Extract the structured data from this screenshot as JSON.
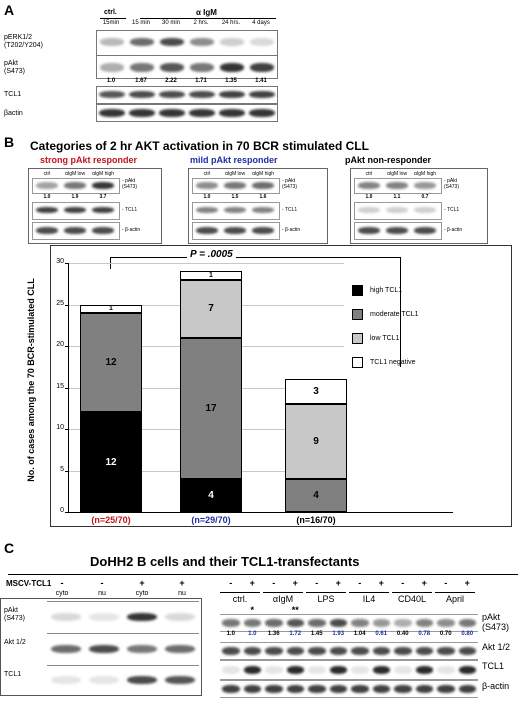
{
  "panelA": {
    "letter": "A",
    "header_ctrl": "ctrl.",
    "header_treat": "α IgM",
    "times": [
      "15min",
      "15 min",
      "30 min",
      "2 hrs.",
      "24 hrs.",
      "4 days"
    ],
    "rows": {
      "perk": "pERK1/2\n(T202/Y204)",
      "pakt": "pAkt\n(S473)",
      "tcl1": "TCL1",
      "bactin": "βactin"
    },
    "pakt_values": [
      "1.0",
      "1.67",
      "2.22",
      "1.71",
      "1.35",
      "1.41"
    ],
    "pakt_levels": [
      0.3,
      0.55,
      0.7,
      0.55,
      0.85,
      0.8
    ],
    "perk_levels": [
      0.25,
      0.6,
      0.75,
      0.45,
      0.15,
      0.1
    ]
  },
  "panelB": {
    "letter": "B",
    "title": "Categories of 2 hr AKT activation in 70 BCR stimulated CLL",
    "groups": [
      {
        "name": "strong pAkt responder",
        "color": "#c0141c",
        "lanes": [
          "ctrl",
          "αIgM low",
          "αIgM high"
        ],
        "values": [
          "1.0",
          "1.9",
          "3.7"
        ]
      },
      {
        "name": "mild pAkt responder",
        "color": "#1d2ea3",
        "lanes": [
          "ctrl",
          "αIgM low",
          "αIgM high"
        ],
        "values": [
          "1.0",
          "1.5",
          "1.6"
        ]
      },
      {
        "name": "pAkt non-responder",
        "color": "#000000",
        "lanes": [
          "ctrl",
          "αIgM low",
          "αIgM high"
        ],
        "values": [
          "1.0",
          "1.1",
          "0.7"
        ]
      }
    ],
    "blot_labels": {
      "pakt": "- pAkt\n(S473)",
      "tcl1": "- TCL1",
      "bactin": "- β-actin"
    },
    "pvalue": "P = .0005",
    "colors": {
      "high": "#000000",
      "moderate": "#808080",
      "low": "#c8c8c8",
      "negative": "#ffffff"
    }
  },
  "chart_data": {
    "type": "bar",
    "stacked": true,
    "categories": [
      "(n=25/70)",
      "(n=29/70)",
      "(n=16/70)"
    ],
    "category_colors": [
      "#c0141c",
      "#1d2ea3",
      "#000000"
    ],
    "series": [
      {
        "name": "high TCL1",
        "color": "#000000",
        "values": [
          12,
          4,
          0
        ]
      },
      {
        "name": "moderate TCL1",
        "color": "#808080",
        "values": [
          12,
          17,
          4
        ]
      },
      {
        "name": "low TCL1",
        "color": "#c8c8c8",
        "values": [
          0,
          7,
          9
        ]
      },
      {
        "name": "TCL1 negative",
        "color": "#ffffff",
        "values": [
          1,
          1,
          3
        ]
      }
    ],
    "segment_labels": [
      [
        "12",
        "12",
        "",
        "1"
      ],
      [
        "4",
        "17",
        "7",
        "1"
      ],
      [
        "",
        "4",
        "9",
        "3"
      ]
    ],
    "ylabel": "No. of cases among the 70 BCR-stimulated CLL",
    "ylim": [
      0,
      30
    ],
    "yticks": [
      0,
      5,
      10,
      15,
      20,
      25,
      30
    ],
    "grid": true,
    "legend_position": "right"
  },
  "panelC": {
    "letter": "C",
    "title": "DoHH2 B cells and their TCL1-transfectants",
    "mscv_label": "MSCV-TCL1",
    "left_signs": [
      "-",
      "-",
      "+",
      "+"
    ],
    "left_fractions": [
      "cyto",
      "nu",
      "cyto",
      "nu"
    ],
    "left_rows": [
      "pAkt\n(S473)",
      "Akt 1/2",
      "TCL1"
    ],
    "right_treatments": [
      "ctrl.",
      "αIgM",
      "LPS",
      "IL4",
      "CD40L",
      "April"
    ],
    "right_signs": [
      "-",
      "+",
      "-",
      "+",
      "-",
      "+",
      "-",
      "+",
      "-",
      "+",
      "-",
      "+"
    ],
    "stars": [
      "*",
      "**"
    ],
    "right_values": [
      "1.0",
      "1.0",
      "1.36",
      "1.72",
      "1.45",
      "1.93",
      "1.04",
      "0.61",
      "0.40",
      "0.78",
      "0.70",
      "0.80"
    ],
    "right_value_colors": [
      "#000",
      "#1d2ea3",
      "#000",
      "#1d2ea3",
      "#000",
      "#1d2ea3",
      "#000",
      "#1d2ea3",
      "#000",
      "#1d2ea3",
      "#000",
      "#1d2ea3"
    ],
    "right_rows": [
      "pAkt\n(S473)",
      "Akt 1/2",
      "TCL1",
      "β-actin"
    ]
  }
}
